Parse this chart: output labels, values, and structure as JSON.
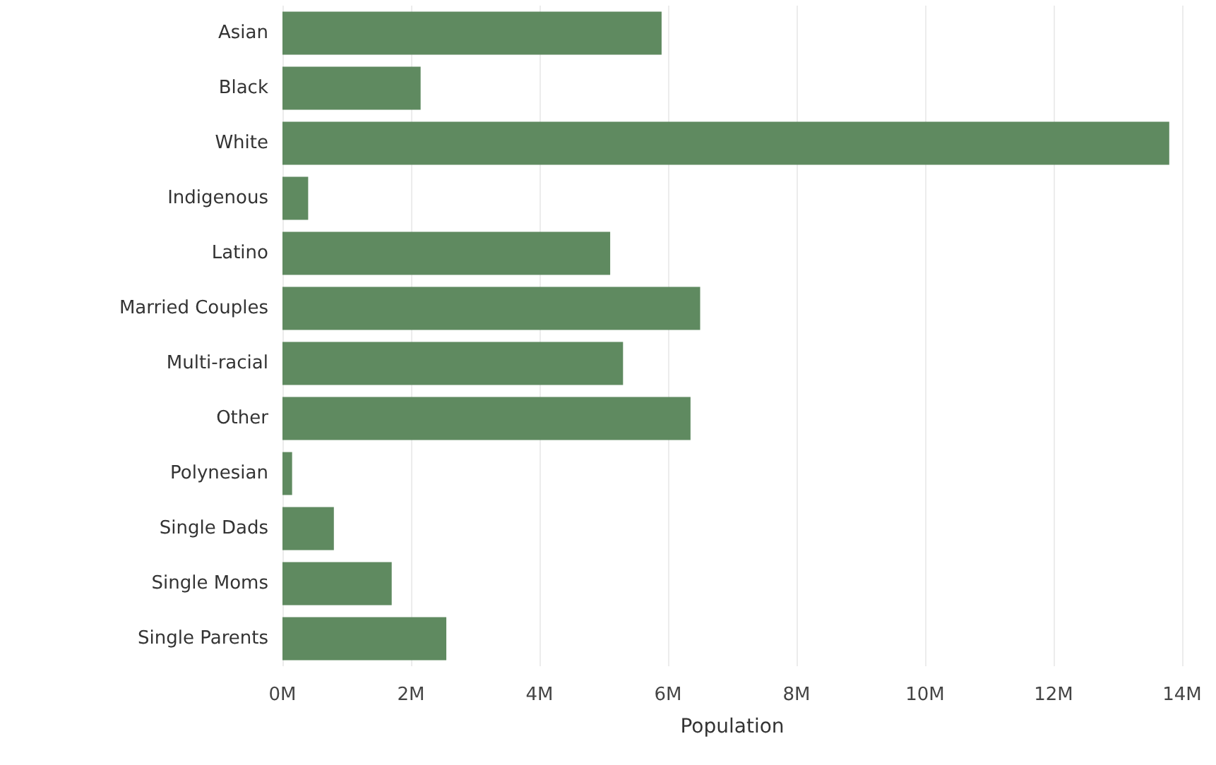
{
  "chart_data": {
    "type": "bar",
    "orientation": "horizontal",
    "xlabel": "Population",
    "categories": [
      "Asian",
      "Black",
      "White",
      "Indigenous",
      "Latino",
      "Married Couples",
      "Multi-racial",
      "Other",
      "Polynesian",
      "Single Dads",
      "Single Moms",
      "Single Parents"
    ],
    "values": [
      5.9,
      2.15,
      13.8,
      0.4,
      5.1,
      6.5,
      5.3,
      6.35,
      0.15,
      0.8,
      1.7,
      2.55
    ],
    "color": "#5f8a60",
    "xlim": [
      0,
      14
    ],
    "xticks": [
      {
        "value": 0,
        "label": "0M"
      },
      {
        "value": 2,
        "label": "2M"
      },
      {
        "value": 4,
        "label": "4M"
      },
      {
        "value": 6,
        "label": "6M"
      },
      {
        "value": 8,
        "label": "8M"
      },
      {
        "value": 10,
        "label": "10M"
      },
      {
        "value": 12,
        "label": "12M"
      },
      {
        "value": 14,
        "label": "14M"
      }
    ],
    "grid": "x"
  }
}
